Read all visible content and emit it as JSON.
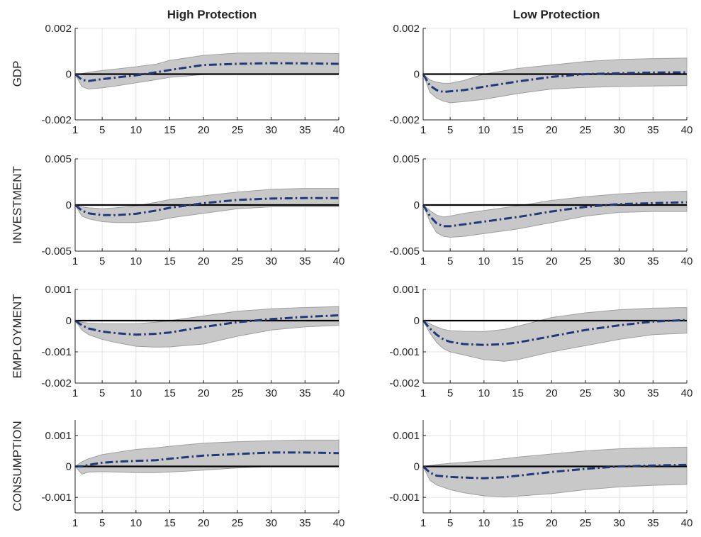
{
  "column_titles": [
    "High Protection",
    "Low Protection"
  ],
  "row_labels": [
    "GDP",
    "INVESTMENT",
    "EMPLOYMENT",
    "CONSUMPTION"
  ],
  "colors": {
    "median_line": "#1f3a7a",
    "confidence_band": "#c8c8c8",
    "band_edge": "#a0a0a0",
    "zero_line": "#000000",
    "grid": "#e3e3e3",
    "axis": "#262626"
  },
  "chart_data": [
    {
      "type": "line",
      "row": "GDP",
      "column": "High Protection",
      "x": [
        1,
        2,
        3,
        5,
        7,
        10,
        13,
        15,
        20,
        25,
        30,
        35,
        40
      ],
      "xticks": [
        1,
        5,
        10,
        15,
        20,
        25,
        30,
        35,
        40
      ],
      "xlim": [
        1,
        40
      ],
      "ylim": [
        -0.002,
        0.002
      ],
      "yticks": [
        -0.002,
        0,
        0.002
      ],
      "yticklabels": [
        "-0.002",
        "0",
        "0.002"
      ],
      "grid": true,
      "median": [
        0,
        -0.00025,
        -0.0003,
        -0.00022,
        -0.00015,
        -5e-05,
        8e-05,
        0.00018,
        0.0004,
        0.00045,
        0.00048,
        0.00047,
        0.00045
      ],
      "upper": [
        0,
        2e-05,
        8e-05,
        0.00016,
        0.00022,
        0.00032,
        0.00044,
        0.0006,
        0.00082,
        0.00092,
        0.00093,
        0.00092,
        0.0009
      ],
      "lower": [
        0,
        -0.00055,
        -0.00065,
        -0.0006,
        -0.00052,
        -0.00038,
        -0.00024,
        -0.00014,
        -2e-05,
        0,
        1e-05,
        2e-05,
        2e-05
      ]
    },
    {
      "type": "line",
      "row": "GDP",
      "column": "Low Protection",
      "x": [
        1,
        2,
        3,
        4,
        5,
        7,
        10,
        15,
        20,
        25,
        30,
        35,
        40
      ],
      "xticks": [
        1,
        5,
        10,
        15,
        20,
        25,
        30,
        35,
        40
      ],
      "xlim": [
        1,
        40
      ],
      "ylim": [
        -0.002,
        0.002
      ],
      "yticks": [
        -0.002,
        0,
        0.002
      ],
      "yticklabels": [
        "-0.002",
        "0",
        "0.002"
      ],
      "grid": true,
      "median": [
        0,
        -0.0005,
        -0.0007,
        -0.00078,
        -0.00075,
        -0.0007,
        -0.00055,
        -0.00032,
        -0.00012,
        0,
        4e-05,
        7e-05,
        8e-05
      ],
      "upper": [
        0,
        -0.00025,
        -0.00035,
        -0.0004,
        -0.0004,
        -0.00028,
        0,
        0.00025,
        0.0004,
        0.00055,
        0.00064,
        0.00068,
        0.0007
      ],
      "lower": [
        0,
        -0.0008,
        -0.00105,
        -0.00118,
        -0.00125,
        -0.0012,
        -0.0011,
        -0.00085,
        -0.00065,
        -0.00058,
        -0.00054,
        -0.00052,
        -0.0005
      ]
    },
    {
      "type": "line",
      "row": "INVESTMENT",
      "column": "High Protection",
      "x": [
        1,
        2,
        3,
        5,
        7,
        10,
        13,
        15,
        20,
        25,
        30,
        35,
        40
      ],
      "xticks": [
        1,
        5,
        10,
        15,
        20,
        25,
        30,
        35,
        40
      ],
      "xlim": [
        1,
        40
      ],
      "ylim": [
        -0.005,
        0.005
      ],
      "yticks": [
        -0.005,
        0,
        0.005
      ],
      "yticklabels": [
        "-0.005",
        "0",
        "0.005"
      ],
      "grid": true,
      "median": [
        0,
        -0.0006,
        -0.0009,
        -0.0011,
        -0.0011,
        -0.00095,
        -0.0006,
        -0.0003,
        0.0002,
        0.00055,
        0.0007,
        0.00075,
        0.00075
      ],
      "upper": [
        0,
        -0.0002,
        -0.0003,
        -0.0004,
        -0.0003,
        -0.0001,
        0.0003,
        0.0006,
        0.001,
        0.0014,
        0.0017,
        0.0018,
        0.0018
      ],
      "lower": [
        0,
        -0.0012,
        -0.0015,
        -0.0018,
        -0.0019,
        -0.0019,
        -0.0017,
        -0.0014,
        -0.0009,
        -0.0004,
        -0.0002,
        -0.0002,
        -0.0002
      ]
    },
    {
      "type": "line",
      "row": "INVESTMENT",
      "column": "Low Protection",
      "x": [
        1,
        2,
        3,
        4,
        5,
        7,
        10,
        15,
        20,
        25,
        30,
        35,
        40
      ],
      "xticks": [
        1,
        5,
        10,
        15,
        20,
        25,
        30,
        35,
        40
      ],
      "xlim": [
        1,
        40
      ],
      "ylim": [
        -0.005,
        0.005
      ],
      "yticks": [
        -0.005,
        0,
        0.005
      ],
      "yticklabels": [
        "-0.005",
        "0",
        "0.005"
      ],
      "grid": true,
      "median": [
        0,
        -0.0012,
        -0.002,
        -0.0023,
        -0.0023,
        -0.0021,
        -0.0018,
        -0.0013,
        -0.0007,
        -0.0002,
        0.0001,
        0.0002,
        0.0003
      ],
      "upper": [
        0,
        -0.0006,
        -0.0011,
        -0.0013,
        -0.0012,
        -0.0009,
        -0.0006,
        -0.0001,
        0.0005,
        0.0009,
        0.0012,
        0.0014,
        0.0015
      ],
      "lower": [
        0,
        -0.0018,
        -0.003,
        -0.0034,
        -0.0035,
        -0.0034,
        -0.0031,
        -0.0026,
        -0.0019,
        -0.0012,
        -0.0008,
        -0.0007,
        -0.0007
      ]
    },
    {
      "type": "line",
      "row": "EMPLOYMENT",
      "column": "High Protection",
      "x": [
        1,
        2,
        3,
        5,
        7,
        10,
        13,
        15,
        20,
        25,
        30,
        35,
        40
      ],
      "xticks": [
        1,
        5,
        10,
        15,
        20,
        25,
        30,
        35,
        40
      ],
      "xlim": [
        1,
        40
      ],
      "ylim": [
        -0.002,
        0.001
      ],
      "yticks": [
        -0.002,
        -0.001,
        0,
        0.001
      ],
      "yticklabels": [
        "-0.002",
        "-0.001",
        "0",
        "0.001"
      ],
      "grid": true,
      "median": [
        0,
        -0.00015,
        -0.00025,
        -0.00035,
        -0.0004,
        -0.00045,
        -0.00042,
        -0.00038,
        -0.0002,
        -5e-05,
        5e-05,
        0.00012,
        0.00017
      ],
      "upper": [
        0,
        -5e-05,
        -8e-05,
        -0.0001,
        -0.0001,
        -0.0001,
        -5e-05,
        0,
        0.00015,
        0.0003,
        0.00038,
        0.00042,
        0.00045
      ],
      "lower": [
        0,
        -0.0003,
        -0.00045,
        -0.0006,
        -0.0007,
        -0.00082,
        -0.00085,
        -0.00084,
        -0.00075,
        -0.0005,
        -0.0003,
        -0.0002,
        -0.00015
      ]
    },
    {
      "type": "line",
      "row": "EMPLOYMENT",
      "column": "Low Protection",
      "x": [
        1,
        2,
        3,
        4,
        5,
        7,
        10,
        13,
        15,
        20,
        25,
        30,
        35,
        40
      ],
      "xticks": [
        1,
        5,
        10,
        15,
        20,
        25,
        30,
        35,
        40
      ],
      "xlim": [
        1,
        40
      ],
      "ylim": [
        -0.002,
        0.001
      ],
      "yticks": [
        -0.002,
        -0.001,
        0,
        0.001
      ],
      "yticklabels": [
        "-0.002",
        "-0.001",
        "0",
        "0.001"
      ],
      "grid": true,
      "median": [
        0,
        -0.00025,
        -0.00045,
        -0.0006,
        -0.00068,
        -0.00075,
        -0.00078,
        -0.00075,
        -0.0007,
        -0.0005,
        -0.0003,
        -0.00015,
        -3e-05,
        2e-05
      ],
      "upper": [
        0,
        -0.0001,
        -0.0002,
        -0.00028,
        -0.00032,
        -0.00034,
        -0.00035,
        -0.00028,
        -0.00018,
        0.0001,
        0.00025,
        0.00035,
        0.0004,
        0.00042
      ],
      "lower": [
        0,
        -0.0004,
        -0.0007,
        -0.0009,
        -0.001,
        -0.0011,
        -0.00125,
        -0.0013,
        -0.00125,
        -0.001,
        -0.0008,
        -0.0006,
        -0.00045,
        -0.0004
      ]
    },
    {
      "type": "line",
      "row": "CONSUMPTION",
      "column": "High Protection",
      "x": [
        1,
        2,
        3,
        5,
        7,
        10,
        13,
        15,
        20,
        25,
        30,
        35,
        40
      ],
      "xticks": [
        1,
        5,
        10,
        15,
        20,
        25,
        30,
        35,
        40
      ],
      "xlim": [
        1,
        40
      ],
      "ylim": [
        -0.0015,
        0.0015
      ],
      "yticks": [
        -0.001,
        0,
        0.001
      ],
      "yticklabels": [
        "-0.001",
        "0",
        "0.001"
      ],
      "grid": true,
      "median": [
        0,
        0,
        5e-05,
        0.00012,
        0.00015,
        0.00018,
        0.0002,
        0.00025,
        0.00035,
        0.0004,
        0.00045,
        0.00045,
        0.00043
      ],
      "upper": [
        0,
        0.00015,
        0.00025,
        0.00038,
        0.00045,
        0.00055,
        0.0006,
        0.00065,
        0.00075,
        0.0008,
        0.00083,
        0.00085,
        0.00085
      ],
      "lower": [
        0,
        -0.00025,
        -0.00018,
        -0.00017,
        -0.00018,
        -0.0002,
        -0.0002,
        -0.00018,
        -0.00012,
        -5e-05,
        0,
        1e-05,
        2e-05
      ]
    },
    {
      "type": "line",
      "row": "CONSUMPTION",
      "column": "Low Protection",
      "x": [
        1,
        2,
        3,
        5,
        7,
        10,
        13,
        15,
        20,
        25,
        30,
        35,
        40
      ],
      "xticks": [
        1,
        5,
        10,
        15,
        20,
        25,
        30,
        35,
        40
      ],
      "xlim": [
        1,
        40
      ],
      "ylim": [
        -0.0015,
        0.0015
      ],
      "yticks": [
        -0.001,
        0,
        0.001
      ],
      "yticklabels": [
        "-0.001",
        "0",
        "0.001"
      ],
      "grid": true,
      "median": [
        0,
        -0.0002,
        -0.0003,
        -0.00034,
        -0.00036,
        -0.00038,
        -0.00035,
        -0.0003,
        -0.00018,
        -8e-05,
        0,
        3e-05,
        5e-05
      ],
      "upper": [
        0,
        3e-05,
        6e-05,
        0.0001,
        0.00013,
        0.00018,
        0.00025,
        0.0003,
        0.0004,
        0.0005,
        0.00057,
        0.0006,
        0.00062
      ],
      "lower": [
        0,
        -0.00045,
        -0.0006,
        -0.00075,
        -0.00085,
        -0.00095,
        -0.00098,
        -0.00096,
        -0.00088,
        -0.00075,
        -0.00066,
        -0.00061,
        -0.00058
      ]
    }
  ]
}
